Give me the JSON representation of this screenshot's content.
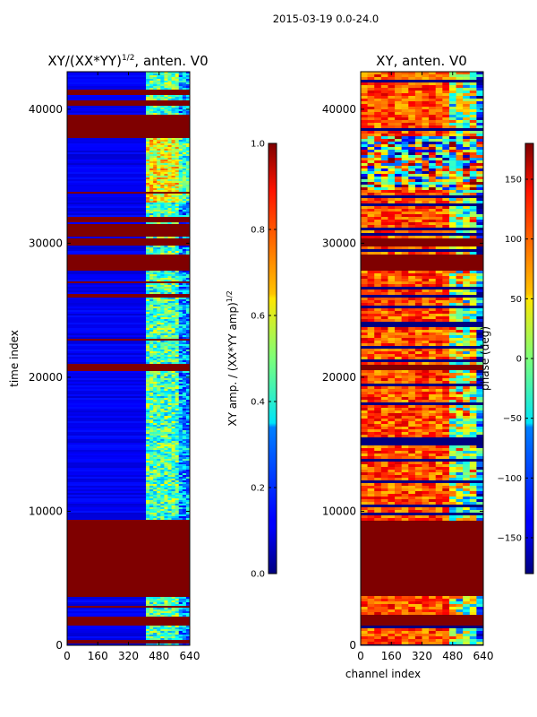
{
  "figure": {
    "suptitle": "2015-03-19 0.0-24.0"
  },
  "chart_data": [
    {
      "type": "heatmap",
      "title": "XY/(XX*YY)^1/2, anten. V0",
      "title_main": "XY/(XX*YY)",
      "title_sup": "1/2",
      "title_tail": ", anten. V0",
      "xlabel": "",
      "ylabel": "time index",
      "xlim": [
        0,
        640
      ],
      "ylim": [
        0,
        42800
      ],
      "xticks": [
        "0",
        "160",
        "320",
        "480",
        "640"
      ],
      "xtick_values": [
        0,
        160,
        320,
        480,
        640
      ],
      "yticks": [
        "0",
        "10000",
        "20000",
        "30000",
        "40000"
      ],
      "ytick_values": [
        0,
        10000,
        20000,
        30000,
        40000
      ],
      "colorbar": {
        "label_main": "XY amp. / (XX*YY amp)",
        "label_sup": "1/2",
        "range": [
          0.0,
          1.0
        ],
        "ticks": [
          "0.0",
          "0.2",
          "0.4",
          "0.6",
          "0.8",
          "1.0"
        ],
        "tick_values": [
          0.0,
          0.2,
          0.4,
          0.6,
          0.8,
          1.0
        ]
      },
      "flagged_time_ranges": [
        [
          200,
          400
        ],
        [
          1500,
          2200
        ],
        [
          2800,
          3000
        ],
        [
          3600,
          9300
        ],
        [
          37800,
          39600
        ],
        [
          40300,
          40700
        ],
        [
          41000,
          41400
        ],
        [
          28000,
          29200
        ],
        [
          29800,
          30300
        ],
        [
          30500,
          31400
        ],
        [
          31600,
          31900
        ],
        [
          33700,
          33900
        ],
        [
          20500,
          21000
        ],
        [
          22800,
          22900
        ],
        [
          26000,
          26200
        ],
        [
          27000,
          27200
        ],
        [
          12800,
          12900
        ],
        [
          14800,
          14900
        ]
      ]
    },
    {
      "type": "heatmap",
      "title": "XY, anten. V0",
      "xlabel": "channel index",
      "ylabel": "",
      "xlim": [
        0,
        640
      ],
      "ylim": [
        0,
        42800
      ],
      "xticks": [
        "0",
        "160",
        "320",
        "480",
        "640"
      ],
      "xtick_values": [
        0,
        160,
        320,
        480,
        640
      ],
      "yticks": [
        "0",
        "10000",
        "20000",
        "30000",
        "40000"
      ],
      "ytick_values": [
        0,
        10000,
        20000,
        30000,
        40000
      ],
      "colorbar": {
        "label": "phase (deg)",
        "range": [
          -180,
          180
        ],
        "ticks": [
          "150",
          "100",
          "50",
          "0",
          "−50",
          "−100",
          "−150"
        ],
        "tick_values": [
          150,
          100,
          50,
          0,
          -50,
          -100,
          -150
        ]
      },
      "flagged_time_ranges": [
        [
          3600,
          9300
        ],
        [
          1500,
          2200
        ],
        [
          28000,
          29200
        ],
        [
          29800,
          30300
        ],
        [
          20500,
          21000
        ]
      ]
    }
  ]
}
